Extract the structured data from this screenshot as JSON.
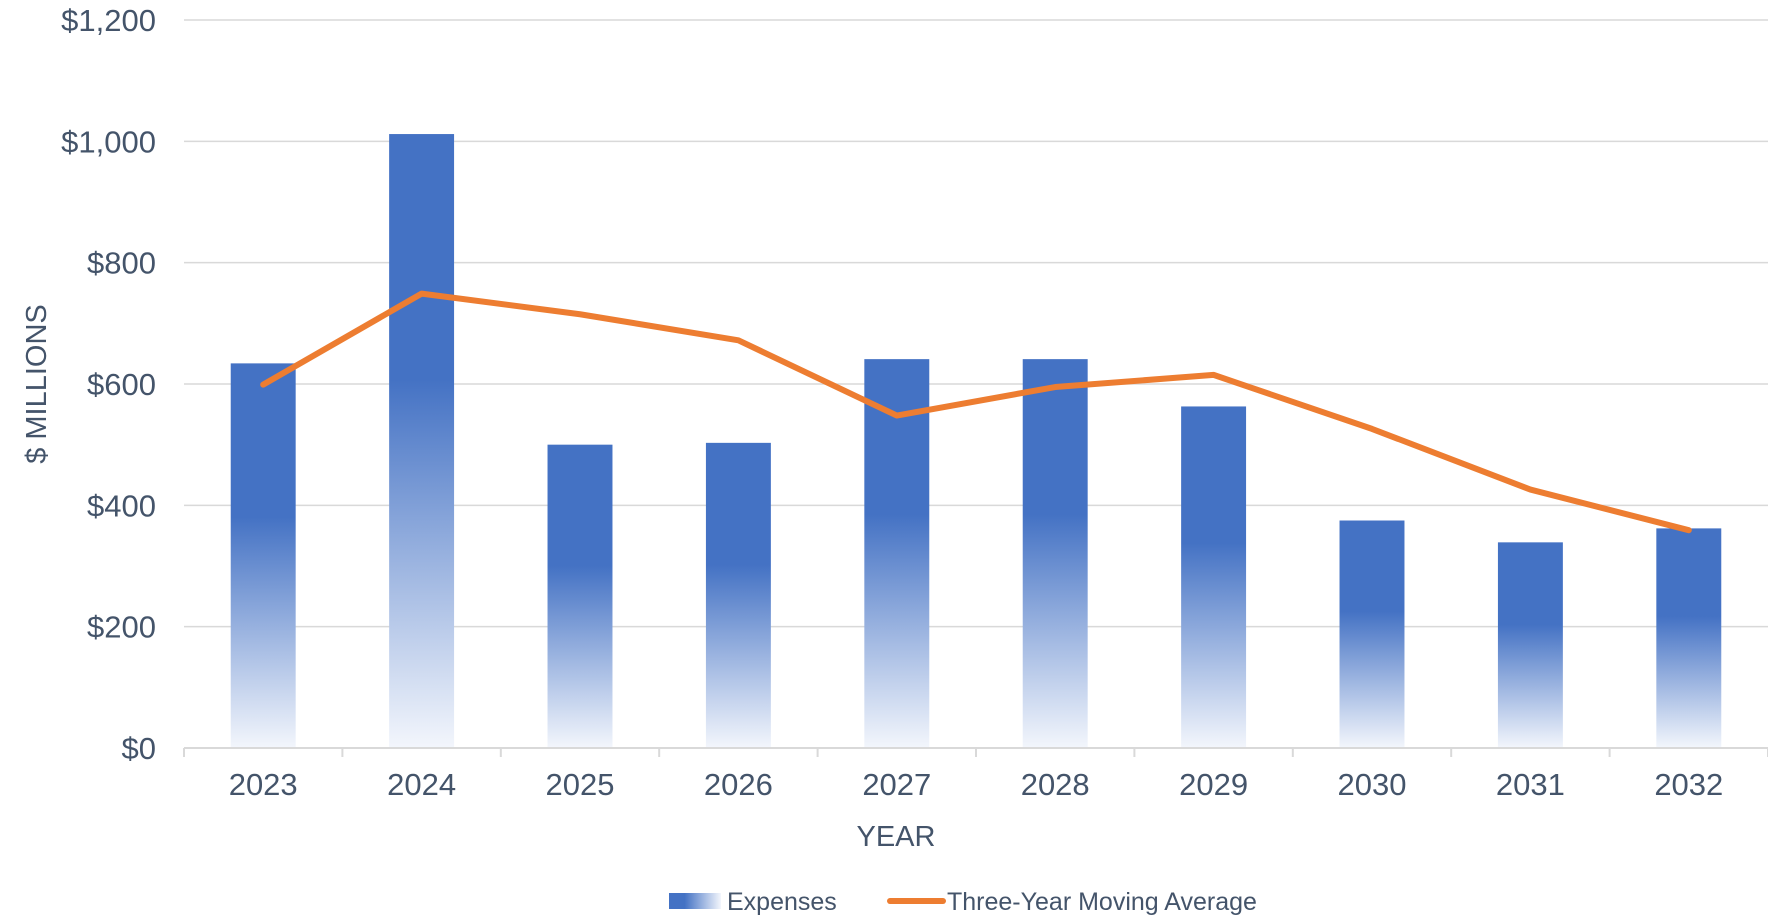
{
  "chart_data": {
    "type": "bar",
    "categories": [
      "2023",
      "2024",
      "2025",
      "2026",
      "2027",
      "2028",
      "2029",
      "2030",
      "2031",
      "2032"
    ],
    "series": [
      {
        "name": "Expenses",
        "kind": "bar",
        "color": "#4472c4",
        "values": [
          634,
          1012,
          500,
          503,
          641,
          641,
          563,
          375,
          339,
          362
        ]
      },
      {
        "name": "Three-Year Moving Average",
        "kind": "line",
        "color": "#ed7d31",
        "values": [
          599,
          749,
          715,
          672,
          548,
          595,
          615,
          526,
          426,
          359
        ]
      }
    ],
    "xlabel": "YEAR",
    "ylabel": "$ MILLIONS",
    "ylim": [
      0,
      1200
    ],
    "yticks": [
      0,
      200,
      400,
      600,
      800,
      1000,
      1200
    ],
    "ytick_labels": [
      "$0",
      "$200",
      "$400",
      "$600",
      "$800",
      "$1,000",
      "$1,200"
    ],
    "grid": true,
    "legend_position": "bottom"
  }
}
